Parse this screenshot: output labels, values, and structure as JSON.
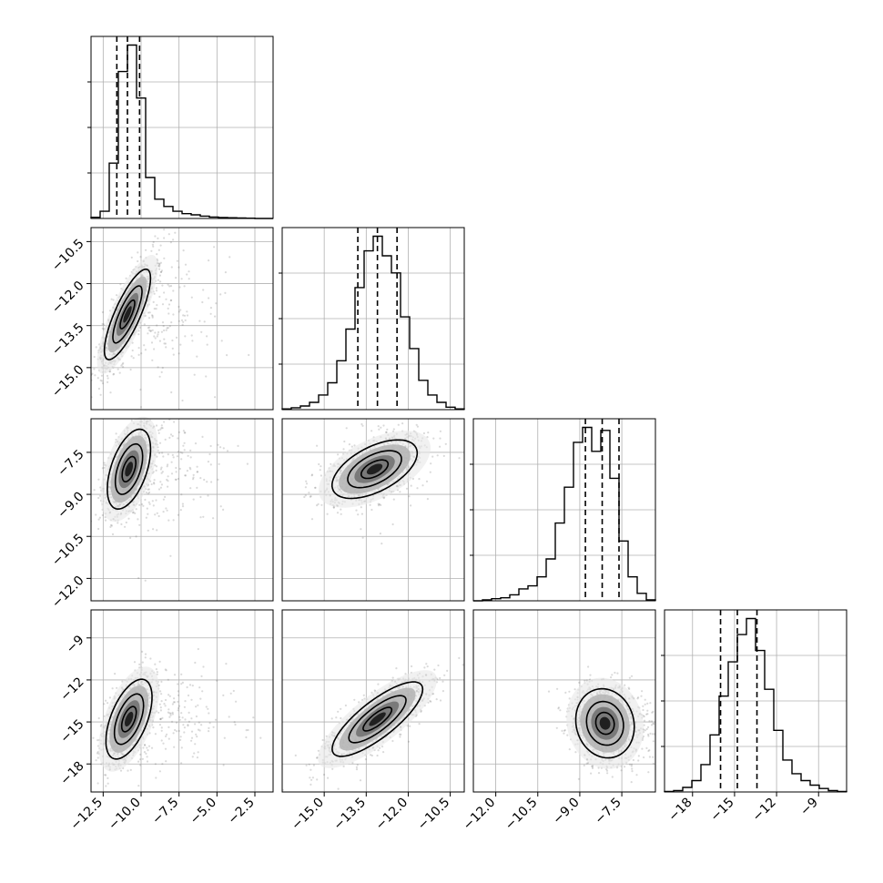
{
  "chart_data": {
    "type": "scatter",
    "title": "",
    "variant": "corner-plot",
    "params": [
      {
        "axis_range": [
          -13.3,
          -1.3
        ],
        "ticks": [
          -12.5,
          -10.0,
          -7.5,
          -5.0,
          -2.5
        ],
        "tick_labels": [
          "−12.5",
          "−10.0",
          "−7.5",
          "−5.0",
          "−2.5"
        ]
      },
      {
        "axis_range": [
          -16.5,
          -10.0
        ],
        "ticks": [
          -15.0,
          -13.5,
          -12.0,
          -10.5
        ],
        "tick_labels": [
          "−15.0",
          "−13.5",
          "−12.0",
          "−10.5"
        ]
      },
      {
        "axis_range": [
          -12.8,
          -6.3
        ],
        "ticks": [
          -12.0,
          -10.5,
          -9.0,
          -7.5
        ],
        "tick_labels": [
          "−12.0",
          "−10.5",
          "−9.0",
          "−7.5"
        ]
      },
      {
        "axis_range": [
          -20.0,
          -7.0
        ],
        "ticks": [
          -18,
          -15,
          -12,
          -9
        ],
        "tick_labels": [
          "−18",
          "−15",
          "−12",
          "−9"
        ]
      }
    ],
    "marginals": [
      {
        "param": 0,
        "bin_start": -13.3,
        "bin_width": 0.6,
        "counts": [
          0.5,
          3,
          23,
          61,
          72,
          50,
          17,
          8,
          5,
          3,
          2,
          1.5,
          1,
          0.6,
          0.4,
          0.3,
          0.2,
          0.1,
          0,
          0
        ],
        "quantiles": [
          -11.6,
          -10.9,
          -10.1
        ]
      },
      {
        "param": 1,
        "bin_start": -16.5,
        "bin_width": 0.325,
        "counts": [
          0.3,
          0.8,
          1.5,
          3,
          6,
          11,
          20,
          33,
          50,
          65,
          71,
          63,
          56,
          38,
          25,
          12,
          6,
          3,
          1,
          0.3
        ],
        "quantiles": [
          -13.8,
          -13.1,
          -12.4
        ]
      },
      {
        "param": 2,
        "bin_start": -12.8,
        "bin_width": 0.325,
        "counts": [
          0,
          0.3,
          0.7,
          1,
          2,
          4,
          5,
          8,
          14,
          26,
          38,
          53,
          58,
          50,
          57,
          41,
          20,
          8,
          2.5,
          0.3
        ],
        "quantiles": [
          -8.8,
          -8.2,
          -7.6
        ]
      },
      {
        "param": 3,
        "bin_start": -20.0,
        "bin_width": 0.65,
        "counts": [
          0.2,
          0.6,
          2,
          5,
          12,
          25,
          42,
          57,
          69,
          76,
          62,
          45,
          27,
          14,
          8,
          5,
          3,
          1.5,
          0.6,
          0.2
        ],
        "quantiles": [
          -16.0,
          -14.8,
          -13.4
        ]
      }
    ],
    "joint": [
      {
        "x_param": 0,
        "y_param": 1,
        "center": [
          -10.9,
          -13.1
        ],
        "sigma": [
          0.8,
          0.85
        ],
        "rho": 0.8,
        "tail_x": 3.0,
        "tail_y": 1.0
      },
      {
        "x_param": 0,
        "y_param": 2,
        "center": [
          -10.8,
          -8.1
        ],
        "sigma": [
          0.75,
          0.75
        ],
        "rho": 0.5,
        "tail_x": 3.0,
        "tail_y": 0.8
      },
      {
        "x_param": 1,
        "y_param": 2,
        "center": [
          -13.2,
          -8.1
        ],
        "sigma": [
          0.8,
          0.55
        ],
        "rho": 0.55,
        "tail_x": 0.2,
        "tail_y": 0.6
      },
      {
        "x_param": 0,
        "y_param": 3,
        "center": [
          -10.8,
          -14.8
        ],
        "sigma": [
          0.8,
          1.5
        ],
        "rho": 0.55,
        "tail_x": 3.0,
        "tail_y": 1.0
      },
      {
        "x_param": 1,
        "y_param": 3,
        "center": [
          -13.1,
          -14.8
        ],
        "sigma": [
          0.85,
          1.4
        ],
        "rho": 0.8,
        "tail_x": 0.2,
        "tail_y": 0.5
      },
      {
        "x_param": 2,
        "y_param": 3,
        "center": [
          -8.1,
          -15.1
        ],
        "sigma": [
          0.55,
          1.3
        ],
        "rho": -0.1,
        "tail_x": 0.8,
        "tail_y": 0.8
      }
    ],
    "grid": true,
    "legend": "none"
  }
}
